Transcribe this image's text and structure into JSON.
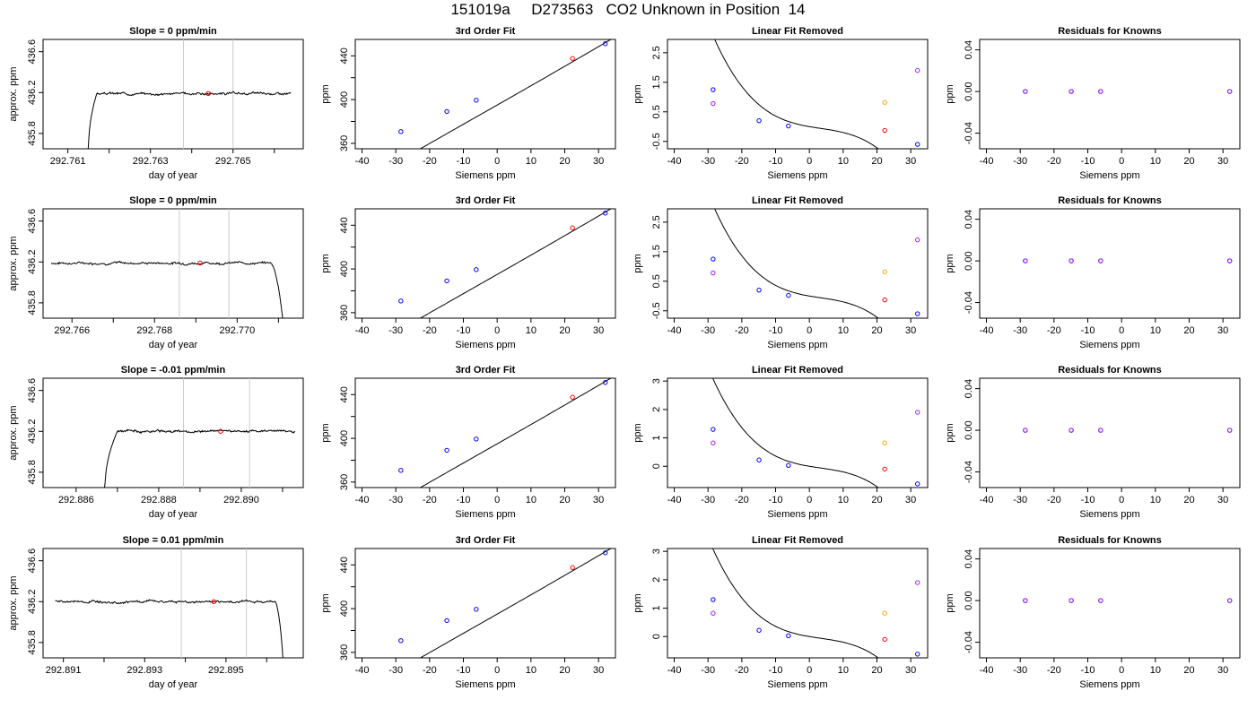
{
  "title": "151019a     D273563   CO2 Unknown in Position  14",
  "colors": {
    "axis": "#000000",
    "marker": "#cccccc",
    "red": "#ff0000",
    "blue": "#0000ff",
    "orange": "#ffa500",
    "purple": "#a020f0"
  },
  "chart_data": [
    {
      "type": "line",
      "title": "Slope =  0  ppm/min",
      "xlabel": "day of year",
      "ylabel": "approx. ppm",
      "xlim": [
        292.7604,
        292.7667
      ],
      "ylim": [
        435.65,
        436.72
      ],
      "xticks": [
        292.761,
        292.762,
        292.763,
        292.764,
        292.765,
        292.766
      ],
      "xticklabels": [
        "292.761",
        "",
        "292.763",
        "",
        "292.765",
        ""
      ],
      "yticks": [
        435.8,
        436.2,
        436.6
      ],
      "yticklabels": [
        "435.8",
        "436.2",
        "436.6"
      ],
      "vlines": [
        292.7638,
        292.765
      ],
      "trace": {
        "x_start": 292.7614,
        "x_end": 292.7664,
        "level": 436.19,
        "rise_start": 292.7615,
        "rise_end": 292.7617,
        "drop_start": null,
        "drop_end": null,
        "start_value": 435.65,
        "end_value": null,
        "seed": 3
      },
      "point": {
        "x": 292.7644,
        "y": 436.19
      }
    },
    {
      "type": "scatter",
      "title": "3rd Order Fit",
      "xlabel": "Siemens ppm",
      "ylabel": "ppm",
      "xlim": [
        -42,
        35
      ],
      "ylim": [
        355,
        455
      ],
      "xticks": [
        -40,
        -30,
        -20,
        -10,
        0,
        10,
        20,
        30
      ],
      "yticks": [
        360,
        380,
        400,
        420,
        440
      ],
      "yticklabels": [
        "360",
        "",
        "400",
        "",
        "440"
      ],
      "fit": {
        "a": 395,
        "b": 1.76,
        "c": 0.00033,
        "d": 1.2e-05
      },
      "points": [
        {
          "x": -28.5,
          "y": 370.7,
          "color": "blue"
        },
        {
          "x": -14.9,
          "y": 389.1,
          "color": "blue"
        },
        {
          "x": -6.2,
          "y": 399.4,
          "color": "blue"
        },
        {
          "x": 22.3,
          "y": 437.6,
          "color": "red"
        },
        {
          "x": 32.0,
          "y": 451.1,
          "color": "blue"
        }
      ]
    },
    {
      "type": "scatter",
      "title": "Linear Fit Removed",
      "xlabel": "Siemens ppm",
      "ylabel": "ppm",
      "xlim": [
        -42,
        35
      ],
      "ylim": [
        -0.75,
        2.95
      ],
      "xticks": [
        -40,
        -30,
        -20,
        -10,
        0,
        10,
        20,
        30
      ],
      "yticks": [
        -0.5,
        0.5,
        1.5,
        2.5
      ],
      "yticklabels": [
        "-0.5",
        "0.5",
        "1.5",
        "2.5"
      ],
      "fit": {
        "a": 0.0,
        "b": -0.02,
        "c": 0.0008,
        "d": -8e-05
      },
      "points": [
        {
          "x": -28.5,
          "y": 1.25,
          "color": "blue"
        },
        {
          "x": -14.9,
          "y": 0.2,
          "color": "blue"
        },
        {
          "x": -6.2,
          "y": 0.02,
          "color": "blue"
        },
        {
          "x": 22.3,
          "y": -0.13,
          "color": "red"
        },
        {
          "x": 32.0,
          "y": -0.6,
          "color": "blue"
        },
        {
          "x": -28.5,
          "y": 0.78,
          "color": "purple"
        },
        {
          "x": 22.3,
          "y": 0.82,
          "color": "orange"
        },
        {
          "x": 32.0,
          "y": 1.9,
          "color": "purple"
        }
      ]
    },
    {
      "type": "scatter",
      "title": "Residuals for Knowns",
      "xlabel": "Siemens ppm",
      "ylabel": "ppm",
      "xlim": [
        -42,
        35
      ],
      "ylim": [
        -0.055,
        0.05
      ],
      "xticks": [
        -40,
        -30,
        -20,
        -10,
        0,
        10,
        20,
        30
      ],
      "yticks": [
        -0.04,
        0,
        0.04
      ],
      "yticklabels": [
        "-0.04",
        "0.00",
        "0.04"
      ],
      "fit": null,
      "points": [
        {
          "x": -28.5,
          "y": 0,
          "color": "blue"
        },
        {
          "x": -14.9,
          "y": 0,
          "color": "blue"
        },
        {
          "x": -6.2,
          "y": 0,
          "color": "blue"
        },
        {
          "x": 32.0,
          "y": 0,
          "color": "blue"
        },
        {
          "x": -28.5,
          "y": 0,
          "color": "purple"
        },
        {
          "x": -14.9,
          "y": 0,
          "color": "purple"
        },
        {
          "x": -6.2,
          "y": 0,
          "color": "purple"
        },
        {
          "x": 32.0,
          "y": 0,
          "color": "purple"
        }
      ]
    },
    {
      "type": "line",
      "title": "Slope =  0  ppm/min",
      "xlabel": "day of year",
      "ylabel": "approx. ppm",
      "xlim": [
        292.7653,
        292.7716
      ],
      "ylim": [
        435.65,
        436.72
      ],
      "xticks": [
        292.766,
        292.767,
        292.768,
        292.769,
        292.77,
        292.771
      ],
      "xticklabels": [
        "292.766",
        "",
        "292.768",
        "",
        "292.770",
        ""
      ],
      "yticks": [
        435.8,
        436.2,
        436.6
      ],
      "yticklabels": [
        "435.8",
        "436.2",
        "436.6"
      ],
      "vlines": [
        292.7686,
        292.7698
      ],
      "trace": {
        "x_start": 292.7655,
        "x_end": 292.7711,
        "level": 436.19,
        "rise_start": null,
        "rise_end": null,
        "drop_start": 292.7708,
        "drop_end": 292.7711,
        "start_value": null,
        "end_value": 435.65,
        "seed": 7
      },
      "point": {
        "x": 292.7691,
        "y": 436.19
      }
    },
    {
      "type": "scatter",
      "title": "3rd Order Fit",
      "xlabel": "Siemens ppm",
      "ylabel": "ppm",
      "xlim": [
        -42,
        35
      ],
      "ylim": [
        355,
        455
      ],
      "xticks": [
        -40,
        -30,
        -20,
        -10,
        0,
        10,
        20,
        30
      ],
      "yticks": [
        360,
        380,
        400,
        420,
        440
      ],
      "yticklabels": [
        "360",
        "",
        "400",
        "",
        "440"
      ],
      "fit": {
        "a": 395,
        "b": 1.76,
        "c": 0.00033,
        "d": 1.2e-05
      },
      "points": [
        {
          "x": -28.5,
          "y": 370.7,
          "color": "blue"
        },
        {
          "x": -14.9,
          "y": 389.1,
          "color": "blue"
        },
        {
          "x": -6.2,
          "y": 399.4,
          "color": "blue"
        },
        {
          "x": 22.3,
          "y": 437.6,
          "color": "red"
        },
        {
          "x": 32.0,
          "y": 451.1,
          "color": "blue"
        }
      ]
    },
    {
      "type": "scatter",
      "title": "Linear Fit Removed",
      "xlabel": "Siemens ppm",
      "ylabel": "ppm",
      "xlim": [
        -42,
        35
      ],
      "ylim": [
        -0.75,
        2.95
      ],
      "xticks": [
        -40,
        -30,
        -20,
        -10,
        0,
        10,
        20,
        30
      ],
      "yticks": [
        -0.5,
        0.5,
        1.5,
        2.5
      ],
      "yticklabels": [
        "-0.5",
        "0.5",
        "1.5",
        "2.5"
      ],
      "fit": {
        "a": 0.0,
        "b": -0.02,
        "c": 0.0008,
        "d": -8e-05
      },
      "points": [
        {
          "x": -28.5,
          "y": 1.25,
          "color": "blue"
        },
        {
          "x": -14.9,
          "y": 0.2,
          "color": "blue"
        },
        {
          "x": -6.2,
          "y": 0.02,
          "color": "blue"
        },
        {
          "x": 22.3,
          "y": -0.13,
          "color": "red"
        },
        {
          "x": 32.0,
          "y": -0.6,
          "color": "blue"
        },
        {
          "x": -28.5,
          "y": 0.78,
          "color": "purple"
        },
        {
          "x": 22.3,
          "y": 0.82,
          "color": "orange"
        },
        {
          "x": 32.0,
          "y": 1.9,
          "color": "purple"
        }
      ]
    },
    {
      "type": "scatter",
      "title": "Residuals for Knowns",
      "xlabel": "Siemens ppm",
      "ylabel": "ppm",
      "xlim": [
        -42,
        35
      ],
      "ylim": [
        -0.055,
        0.05
      ],
      "xticks": [
        -40,
        -30,
        -20,
        -10,
        0,
        10,
        20,
        30
      ],
      "yticks": [
        -0.04,
        0,
        0.04
      ],
      "yticklabels": [
        "-0.04",
        "0.00",
        "0.04"
      ],
      "fit": null,
      "points": [
        {
          "x": -28.5,
          "y": 0,
          "color": "blue"
        },
        {
          "x": -14.9,
          "y": 0,
          "color": "blue"
        },
        {
          "x": -6.2,
          "y": 0,
          "color": "blue"
        },
        {
          "x": 32.0,
          "y": 0,
          "color": "blue"
        },
        {
          "x": -28.5,
          "y": 0,
          "color": "purple"
        },
        {
          "x": -14.9,
          "y": 0,
          "color": "purple"
        },
        {
          "x": -6.2,
          "y": 0,
          "color": "purple"
        },
        {
          "x": 32.0,
          "y": 0,
          "color": "purple"
        }
      ]
    },
    {
      "type": "line",
      "title": "Slope =  -0.01  ppm/min",
      "xlabel": "day of year",
      "ylabel": "approx. ppm",
      "xlim": [
        292.8852,
        292.8915
      ],
      "ylim": [
        435.65,
        436.72
      ],
      "xticks": [
        292.886,
        292.887,
        292.888,
        292.889,
        292.89,
        292.891
      ],
      "xticklabels": [
        "292.886",
        "",
        "292.888",
        "",
        "292.890",
        ""
      ],
      "yticks": [
        435.8,
        436.2,
        436.6
      ],
      "yticklabels": [
        "435.8",
        "436.2",
        "436.6"
      ],
      "vlines": [
        292.8886,
        292.8902
      ],
      "trace": {
        "x_start": 292.8866,
        "x_end": 292.8913,
        "level": 436.2,
        "rise_start": 292.8867,
        "rise_end": 292.887,
        "drop_start": null,
        "drop_end": null,
        "start_value": 435.65,
        "end_value": null,
        "seed": 11
      },
      "point": {
        "x": 292.8895,
        "y": 436.2
      }
    },
    {
      "type": "scatter",
      "title": "3rd Order Fit",
      "xlabel": "Siemens ppm",
      "ylabel": "ppm",
      "xlim": [
        -42,
        35
      ],
      "ylim": [
        355,
        455
      ],
      "xticks": [
        -40,
        -30,
        -20,
        -10,
        0,
        10,
        20,
        30
      ],
      "yticks": [
        360,
        380,
        400,
        420,
        440
      ],
      "yticklabels": [
        "360",
        "",
        "400",
        "",
        "440"
      ],
      "fit": {
        "a": 395,
        "b": 1.76,
        "c": 0.00033,
        "d": 1.2e-05
      },
      "points": [
        {
          "x": -28.5,
          "y": 370.7,
          "color": "blue"
        },
        {
          "x": -14.9,
          "y": 389.1,
          "color": "blue"
        },
        {
          "x": -6.2,
          "y": 399.4,
          "color": "blue"
        },
        {
          "x": 22.3,
          "y": 437.6,
          "color": "red"
        },
        {
          "x": 32.0,
          "y": 451.1,
          "color": "blue"
        }
      ]
    },
    {
      "type": "scatter",
      "title": "Linear Fit Removed",
      "xlabel": "Siemens ppm",
      "ylabel": "ppm",
      "xlim": [
        -42,
        35
      ],
      "ylim": [
        -0.75,
        3.1
      ],
      "xticks": [
        -40,
        -30,
        -20,
        -10,
        0,
        10,
        20,
        30
      ],
      "yticks": [
        0,
        1,
        2,
        3
      ],
      "yticklabels": [
        "0",
        "1",
        "2",
        "3"
      ],
      "fit": {
        "a": 0.0,
        "b": -0.02,
        "c": 0.0008,
        "d": -8e-05
      },
      "points": [
        {
          "x": -28.5,
          "y": 1.3,
          "color": "blue"
        },
        {
          "x": -14.9,
          "y": 0.22,
          "color": "blue"
        },
        {
          "x": -6.2,
          "y": 0.03,
          "color": "blue"
        },
        {
          "x": 22.3,
          "y": -0.1,
          "color": "red"
        },
        {
          "x": 32.0,
          "y": -0.62,
          "color": "blue"
        },
        {
          "x": -28.5,
          "y": 0.82,
          "color": "purple"
        },
        {
          "x": 22.3,
          "y": 0.82,
          "color": "orange"
        },
        {
          "x": 32.0,
          "y": 1.9,
          "color": "purple"
        }
      ]
    },
    {
      "type": "scatter",
      "title": "Residuals for Knowns",
      "xlabel": "Siemens ppm",
      "ylabel": "ppm",
      "xlim": [
        -42,
        35
      ],
      "ylim": [
        -0.055,
        0.05
      ],
      "xticks": [
        -40,
        -30,
        -20,
        -10,
        0,
        10,
        20,
        30
      ],
      "yticks": [
        -0.04,
        0,
        0.04
      ],
      "yticklabels": [
        "-0.04",
        "0.00",
        "0.04"
      ],
      "fit": null,
      "points": [
        {
          "x": -28.5,
          "y": 0,
          "color": "blue"
        },
        {
          "x": -14.9,
          "y": 0,
          "color": "blue"
        },
        {
          "x": -6.2,
          "y": 0,
          "color": "blue"
        },
        {
          "x": 32.0,
          "y": 0,
          "color": "blue"
        },
        {
          "x": -28.5,
          "y": 0,
          "color": "purple"
        },
        {
          "x": -14.9,
          "y": 0,
          "color": "purple"
        },
        {
          "x": -6.2,
          "y": 0,
          "color": "purple"
        },
        {
          "x": 32.0,
          "y": 0,
          "color": "purple"
        }
      ]
    },
    {
      "type": "line",
      "title": "Slope =  0.01  ppm/min",
      "xlabel": "day of year",
      "ylabel": "approx. ppm",
      "xlim": [
        292.8905,
        292.8969
      ],
      "ylim": [
        435.65,
        436.72
      ],
      "xticks": [
        292.891,
        292.892,
        292.893,
        292.894,
        292.895,
        292.896
      ],
      "xticklabels": [
        "292.891",
        "",
        "292.893",
        "",
        "292.895",
        ""
      ],
      "yticks": [
        435.8,
        436.2,
        436.6
      ],
      "yticklabels": [
        "435.8",
        "436.2",
        "436.6"
      ],
      "vlines": [
        292.8939,
        292.8955
      ],
      "trace": {
        "x_start": 292.8908,
        "x_end": 292.8964,
        "level": 436.2,
        "rise_start": null,
        "rise_end": null,
        "drop_start": 292.8962,
        "drop_end": 292.8964,
        "start_value": null,
        "end_value": 435.65,
        "seed": 19
      },
      "point": {
        "x": 292.8947,
        "y": 436.2
      }
    },
    {
      "type": "scatter",
      "title": "3rd Order Fit",
      "xlabel": "Siemens ppm",
      "ylabel": "ppm",
      "xlim": [
        -42,
        35
      ],
      "ylim": [
        355,
        455
      ],
      "xticks": [
        -40,
        -30,
        -20,
        -10,
        0,
        10,
        20,
        30
      ],
      "yticks": [
        360,
        380,
        400,
        420,
        440
      ],
      "yticklabels": [
        "360",
        "",
        "400",
        "",
        "440"
      ],
      "fit": {
        "a": 395,
        "b": 1.76,
        "c": 0.00033,
        "d": 1.2e-05
      },
      "points": [
        {
          "x": -28.5,
          "y": 370.7,
          "color": "blue"
        },
        {
          "x": -14.9,
          "y": 389.1,
          "color": "blue"
        },
        {
          "x": -6.2,
          "y": 399.4,
          "color": "blue"
        },
        {
          "x": 22.3,
          "y": 437.6,
          "color": "red"
        },
        {
          "x": 32.0,
          "y": 451.1,
          "color": "blue"
        }
      ]
    },
    {
      "type": "scatter",
      "title": "Linear Fit Removed",
      "xlabel": "Siemens ppm",
      "ylabel": "ppm",
      "xlim": [
        -42,
        35
      ],
      "ylim": [
        -0.75,
        3.1
      ],
      "xticks": [
        -40,
        -30,
        -20,
        -10,
        0,
        10,
        20,
        30
      ],
      "yticks": [
        0,
        1,
        2,
        3
      ],
      "yticklabels": [
        "0",
        "1",
        "2",
        "3"
      ],
      "fit": {
        "a": 0.0,
        "b": -0.02,
        "c": 0.0008,
        "d": -8e-05
      },
      "points": [
        {
          "x": -28.5,
          "y": 1.3,
          "color": "blue"
        },
        {
          "x": -14.9,
          "y": 0.22,
          "color": "blue"
        },
        {
          "x": -6.2,
          "y": 0.03,
          "color": "blue"
        },
        {
          "x": 22.3,
          "y": -0.1,
          "color": "red"
        },
        {
          "x": 32.0,
          "y": -0.62,
          "color": "blue"
        },
        {
          "x": -28.5,
          "y": 0.82,
          "color": "purple"
        },
        {
          "x": 22.3,
          "y": 0.82,
          "color": "orange"
        },
        {
          "x": 32.0,
          "y": 1.9,
          "color": "purple"
        }
      ]
    },
    {
      "type": "scatter",
      "title": "Residuals for Knowns",
      "xlabel": "Siemens ppm",
      "ylabel": "ppm",
      "xlim": [
        -42,
        35
      ],
      "ylim": [
        -0.055,
        0.05
      ],
      "xticks": [
        -40,
        -30,
        -20,
        -10,
        0,
        10,
        20,
        30
      ],
      "yticks": [
        -0.04,
        0,
        0.04
      ],
      "yticklabels": [
        "-0.04",
        "0.00",
        "0.04"
      ],
      "fit": null,
      "points": [
        {
          "x": -28.5,
          "y": 0,
          "color": "blue"
        },
        {
          "x": -14.9,
          "y": 0,
          "color": "blue"
        },
        {
          "x": -6.2,
          "y": 0,
          "color": "blue"
        },
        {
          "x": 32.0,
          "y": 0,
          "color": "blue"
        },
        {
          "x": -28.5,
          "y": 0,
          "color": "purple"
        },
        {
          "x": -14.9,
          "y": 0,
          "color": "purple"
        },
        {
          "x": -6.2,
          "y": 0,
          "color": "purple"
        },
        {
          "x": 32.0,
          "y": 0,
          "color": "purple"
        }
      ]
    }
  ]
}
